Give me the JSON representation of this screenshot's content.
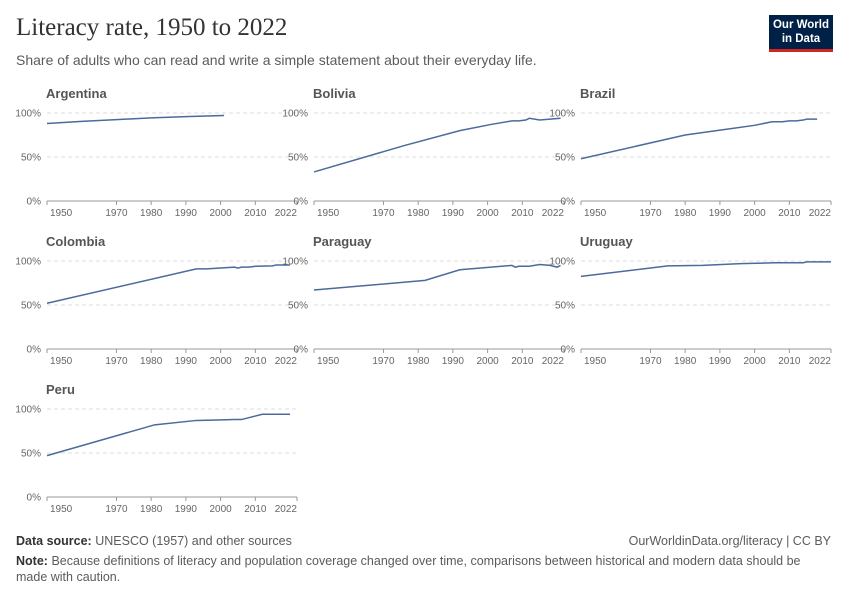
{
  "header": {
    "title": "Literacy rate, 1950 to 2022",
    "subtitle": "Share of adults who can read and write a simple statement about their everyday life.",
    "logo": [
      "Our World",
      "in Data"
    ]
  },
  "footer": {
    "source_label": "Data source:",
    "source": "UNESCO (1957) and other sources",
    "link": "OurWorldinData.org/literacy | CC BY",
    "note_label": "Note:",
    "note": "Because definitions of literacy and population coverage changed over time, comparisons between historical and modern data should be made with caution."
  },
  "chart_data": [
    {
      "type": "line",
      "title": "Argentina",
      "x": [
        1950,
        1960,
        1970,
        1980,
        1991,
        2001
      ],
      "series": [
        {
          "color": "#4c6a9c",
          "values": [
            88,
            90.5,
            92.5,
            94.4,
            96,
            97.2
          ]
        }
      ],
      "xlim": [
        1950,
        2022
      ],
      "xticks": [
        1950,
        1970,
        1980,
        1990,
        2000,
        2010,
        2022
      ],
      "ylim": [
        0,
        100
      ],
      "yticks": [
        {
          "value": 0,
          "label": "0%"
        },
        {
          "value": 50,
          "label": "50%"
        },
        {
          "value": 100,
          "label": "100%"
        }
      ]
    },
    {
      "type": "line",
      "title": "Bolivia",
      "x": [
        1950,
        1976,
        1992,
        2001,
        2007,
        2009,
        2011,
        2012,
        2015,
        2018,
        2021
      ],
      "series": [
        {
          "color": "#4c6a9c",
          "values": [
            33,
            63,
            80,
            87,
            91,
            91,
            92,
            94,
            92,
            93,
            94
          ]
        }
      ],
      "xlim": [
        1950,
        2022
      ],
      "xticks": [
        1950,
        1970,
        1980,
        1990,
        2000,
        2010,
        2022
      ],
      "ylim": [
        0,
        100
      ],
      "yticks": [
        {
          "value": 0,
          "label": "0%"
        },
        {
          "value": 50,
          "label": "50%"
        },
        {
          "value": 100,
          "label": "100%"
        }
      ]
    },
    {
      "type": "line",
      "title": "Brazil",
      "x": [
        1950,
        1980,
        2000,
        2005,
        2008,
        2010,
        2012,
        2014,
        2015,
        2018
      ],
      "series": [
        {
          "color": "#4c6a9c",
          "values": [
            48,
            75,
            86,
            90,
            90,
            91,
            91,
            92,
            93,
            93
          ]
        }
      ],
      "xlim": [
        1950,
        2022
      ],
      "xticks": [
        1950,
        1970,
        1980,
        1990,
        2000,
        2010,
        2022
      ],
      "ylim": [
        0,
        100
      ],
      "yticks": [
        {
          "value": 0,
          "label": "0%"
        },
        {
          "value": 50,
          "label": "50%"
        },
        {
          "value": 100,
          "label": "100%"
        }
      ]
    },
    {
      "type": "line",
      "title": "Colombia",
      "x": [
        1950,
        1993,
        1996,
        2000,
        2004,
        2005,
        2006,
        2008,
        2010,
        2015,
        2016,
        2020
      ],
      "series": [
        {
          "color": "#4c6a9c",
          "values": [
            52,
            91,
            91,
            92,
            93,
            92,
            93,
            93,
            94,
            94.5,
            95.5,
            95.5
          ]
        }
      ],
      "xlim": [
        1950,
        2022
      ],
      "xticks": [
        1950,
        1970,
        1980,
        1990,
        2000,
        2010,
        2022
      ],
      "ylim": [
        0,
        100
      ],
      "yticks": [
        {
          "value": 0,
          "label": "0%"
        },
        {
          "value": 50,
          "label": "50%"
        },
        {
          "value": 100,
          "label": "100%"
        }
      ]
    },
    {
      "type": "line",
      "title": "Paraguay",
      "x": [
        1950,
        1982,
        1992,
        2007,
        2008,
        2009,
        2012,
        2015,
        2018,
        2020,
        2021
      ],
      "series": [
        {
          "color": "#4c6a9c",
          "values": [
            67,
            78,
            90,
            95,
            93,
            94,
            94,
            96,
            95,
            93,
            95
          ]
        }
      ],
      "xlim": [
        1950,
        2022
      ],
      "xticks": [
        1950,
        1970,
        1980,
        1990,
        2000,
        2010,
        2022
      ],
      "ylim": [
        0,
        100
      ],
      "yticks": [
        {
          "value": 0,
          "label": "0%"
        },
        {
          "value": 50,
          "label": "50%"
        },
        {
          "value": 100,
          "label": "100%"
        }
      ]
    },
    {
      "type": "line",
      "title": "Uruguay",
      "x": [
        1950,
        1975,
        1985,
        1996,
        2006,
        2014,
        2015,
        2022
      ],
      "series": [
        {
          "color": "#4c6a9c",
          "values": [
            82.5,
            94.5,
            95,
            97,
            98,
            98,
            99,
            99
          ]
        }
      ],
      "xlim": [
        1950,
        2022
      ],
      "xticks": [
        1950,
        1970,
        1980,
        1990,
        2000,
        2010,
        2022
      ],
      "ylim": [
        0,
        100
      ],
      "yticks": [
        {
          "value": 0,
          "label": "0%"
        },
        {
          "value": 50,
          "label": "50%"
        },
        {
          "value": 100,
          "label": "100%"
        }
      ]
    },
    {
      "type": "line",
      "title": "Peru",
      "x": [
        1950,
        1981,
        1993,
        1999,
        2004,
        2006,
        2012,
        2020
      ],
      "series": [
        {
          "color": "#4c6a9c",
          "values": [
            47,
            82,
            87,
            87.5,
            88,
            88,
            94,
            94
          ]
        }
      ],
      "xlim": [
        1950,
        2022
      ],
      "xticks": [
        1950,
        1970,
        1980,
        1990,
        2000,
        2010,
        2022
      ],
      "ylim": [
        0,
        100
      ],
      "yticks": [
        {
          "value": 0,
          "label": "0%"
        },
        {
          "value": 50,
          "label": "50%"
        },
        {
          "value": 100,
          "label": "100%"
        }
      ]
    }
  ]
}
